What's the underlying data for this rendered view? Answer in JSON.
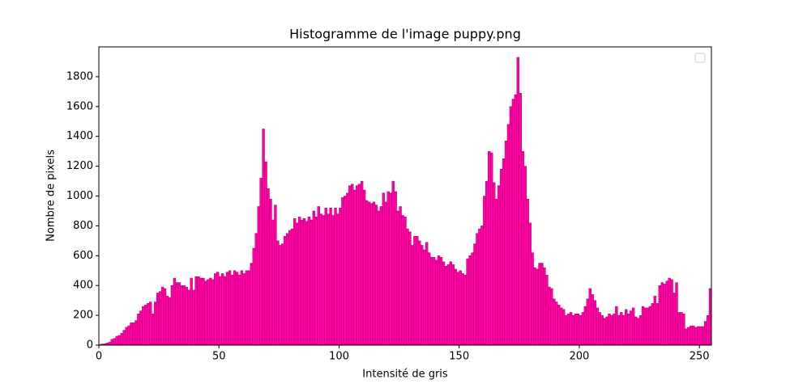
{
  "chart_data": {
    "type": "histogram",
    "title": "Histogramme de l'image puppy.png",
    "x_label": "Intensité de gris",
    "y_label": "Nombre de pixels",
    "color": "#ff00a8",
    "edgecolor": "#a0004e",
    "xlim": [
      0,
      255
    ],
    "ylim": [
      0,
      2000
    ],
    "xticks": [
      0,
      50,
      100,
      150,
      200,
      250
    ],
    "yticks": [
      0,
      200,
      400,
      600,
      800,
      1000,
      1200,
      1400,
      1600,
      1800
    ],
    "legend": "upper right",
    "bins": [
      0,
      1,
      2,
      3,
      4,
      5,
      6,
      7,
      8,
      9,
      10,
      11,
      12,
      13,
      14,
      15,
      16,
      17,
      18,
      19,
      20,
      21,
      22,
      23,
      24,
      25,
      26,
      27,
      28,
      29,
      30,
      31,
      32,
      33,
      34,
      35,
      36,
      37,
      38,
      39,
      40,
      41,
      42,
      43,
      44,
      45,
      46,
      47,
      48,
      49,
      50,
      51,
      52,
      53,
      54,
      55,
      56,
      57,
      58,
      59,
      60,
      61,
      62,
      63,
      64,
      65,
      66,
      67,
      68,
      69,
      70,
      71,
      72,
      73,
      74,
      75,
      76,
      77,
      78,
      79,
      80,
      81,
      82,
      83,
      84,
      85,
      86,
      87,
      88,
      89,
      90,
      91,
      92,
      93,
      94,
      95,
      96,
      97,
      98,
      99,
      100,
      101,
      102,
      103,
      104,
      105,
      106,
      107,
      108,
      109,
      110,
      111,
      112,
      113,
      114,
      115,
      116,
      117,
      118,
      119,
      120,
      121,
      122,
      123,
      124,
      125,
      126,
      127,
      128,
      129,
      130,
      131,
      132,
      133,
      134,
      135,
      136,
      137,
      138,
      139,
      140,
      141,
      142,
      143,
      144,
      145,
      146,
      147,
      148,
      149,
      150,
      151,
      152,
      153,
      154,
      155,
      156,
      157,
      158,
      159,
      160,
      161,
      162,
      163,
      164,
      165,
      166,
      167,
      168,
      169,
      170,
      171,
      172,
      173,
      174,
      175,
      176,
      177,
      178,
      179,
      180,
      181,
      182,
      183,
      184,
      185,
      186,
      187,
      188,
      189,
      190,
      191,
      192,
      193,
      194,
      195,
      196,
      197,
      198,
      199,
      200,
      201,
      202,
      203,
      204,
      205,
      206,
      207,
      208,
      209,
      210,
      211,
      212,
      213,
      214,
      215,
      216,
      217,
      218,
      219,
      220,
      221,
      222,
      223,
      224,
      225,
      226,
      227,
      228,
      229,
      230,
      231,
      232,
      233,
      234,
      235,
      236,
      237,
      238,
      239,
      240,
      241,
      242,
      243,
      244,
      245,
      246,
      247,
      248,
      249,
      250,
      251,
      252,
      253,
      254,
      255
    ],
    "values": [
      5,
      8,
      10,
      15,
      20,
      40,
      45,
      60,
      65,
      80,
      100,
      120,
      130,
      150,
      150,
      165,
      210,
      230,
      260,
      270,
      280,
      290,
      210,
      290,
      350,
      360,
      390,
      380,
      330,
      320,
      400,
      450,
      420,
      420,
      400,
      400,
      390,
      370,
      450,
      370,
      460,
      460,
      450,
      450,
      430,
      440,
      450,
      440,
      480,
      490,
      460,
      480,
      460,
      490,
      500,
      470,
      500,
      490,
      470,
      500,
      480,
      500,
      500,
      550,
      650,
      750,
      930,
      1120,
      1450,
      1230,
      1050,
      980,
      840,
      940,
      700,
      670,
      680,
      730,
      750,
      770,
      780,
      850,
      820,
      860,
      840,
      850,
      830,
      860,
      840,
      900,
      860,
      930,
      880,
      870,
      920,
      880,
      920,
      870,
      920,
      880,
      920,
      990,
      1000,
      1020,
      1070,
      1080,
      1040,
      1070,
      1080,
      1100,
      1040,
      970,
      960,
      950,
      960,
      940,
      900,
      930,
      1020,
      960,
      1030,
      1020,
      1100,
      1030,
      900,
      930,
      870,
      860,
      780,
      760,
      670,
      730,
      730,
      700,
      670,
      640,
      690,
      620,
      590,
      590,
      570,
      600,
      590,
      560,
      530,
      540,
      560,
      540,
      510,
      490,
      500,
      480,
      470,
      580,
      600,
      620,
      680,
      750,
      780,
      800,
      1000,
      1100,
      1300,
      1290,
      1090,
      980,
      1070,
      1180,
      1250,
      1370,
      1480,
      1600,
      1650,
      1680,
      1930,
      1690,
      1300,
      1200,
      980,
      820,
      620,
      520,
      510,
      550,
      550,
      520,
      470,
      390,
      380,
      310,
      290,
      270,
      250,
      240,
      200,
      210,
      220,
      200,
      210,
      210,
      200,
      220,
      260,
      310,
      380,
      340,
      300,
      250,
      220,
      200,
      180,
      190,
      210,
      200,
      210,
      260,
      200,
      220,
      200,
      240,
      210,
      230,
      250,
      190,
      180,
      200,
      260,
      250,
      250,
      260,
      280,
      330,
      280,
      400,
      420,
      410,
      430,
      450,
      440,
      350,
      420,
      220,
      220,
      210,
      110,
      120,
      130,
      130,
      120,
      125,
      125,
      125,
      160,
      200,
      380
    ]
  }
}
